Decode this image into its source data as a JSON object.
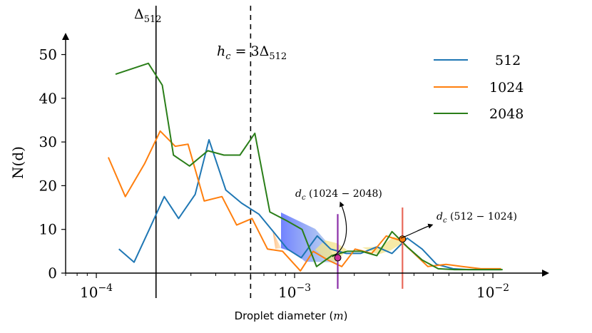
{
  "chart_data": {
    "type": "line",
    "xscale": "log",
    "xlim": [
      7e-05,
      0.018
    ],
    "ylim": [
      0,
      54
    ],
    "xlabel_prefix": "Droplet diameter (",
    "xlabel_var": "m",
    "xlabel_suffix": ")",
    "ylabel": "N(d)",
    "yticks": [
      0,
      10,
      20,
      30,
      40,
      50
    ],
    "ytick_labels": [
      "0",
      "10",
      "20",
      "30",
      "40",
      "50"
    ],
    "xticks": [
      0.0001,
      0.001,
      0.01
    ],
    "xtick_labels": [
      {
        "base": "10",
        "exp": "−4"
      },
      {
        "base": "10",
        "exp": "−3"
      },
      {
        "base": "10",
        "exp": "−2"
      }
    ],
    "legend_position": "top-right",
    "series": [
      {
        "name": "512",
        "color": "#1f77b4",
        "x": [
          0.00013,
          0.000155,
          0.000185,
          0.00022,
          0.00026,
          0.000315,
          0.00037,
          0.00045,
          0.00054,
          0.00066,
          0.00078,
          0.00092,
          0.00108,
          0.0013,
          0.00152,
          0.00182,
          0.00215,
          0.0026,
          0.0031,
          0.0037,
          0.0044,
          0.0052,
          0.0063,
          0.0075,
          0.0091,
          0.011
        ],
        "y": [
          5.5,
          2.5,
          10.0,
          17.5,
          12.5,
          18.0,
          30.5,
          19.0,
          16.0,
          13.5,
          9.5,
          5.5,
          3.5,
          8.5,
          5.5,
          4.5,
          4.5,
          6.0,
          4.5,
          8.0,
          5.5,
          2.0,
          1.0,
          0.8,
          0.8,
          0.8
        ]
      },
      {
        "name": "1024",
        "color": "#ff7f0e",
        "x": [
          0.000115,
          0.00014,
          0.000175,
          0.00021,
          0.00025,
          0.00029,
          0.00035,
          0.00043,
          0.00051,
          0.00061,
          0.00073,
          0.00087,
          0.00107,
          0.00124,
          0.00147,
          0.00173,
          0.00202,
          0.00245,
          0.0029,
          0.0034,
          0.0039,
          0.0047,
          0.0058,
          0.007,
          0.0087,
          0.011
        ],
        "y": [
          26.5,
          17.5,
          25.0,
          32.5,
          29.0,
          29.5,
          16.5,
          17.5,
          11.0,
          12.5,
          5.5,
          5.0,
          0.5,
          5.0,
          3.0,
          1.5,
          5.5,
          4.5,
          8.5,
          7.5,
          5.0,
          1.5,
          2.0,
          1.5,
          1.0,
          1.0
        ]
      },
      {
        "name": "2048",
        "color": "#2a7e19",
        "x": [
          0.000125,
          0.000183,
          0.000215,
          0.000245,
          0.000295,
          0.000365,
          0.00044,
          0.00053,
          0.00063,
          0.00075,
          0.00091,
          0.00109,
          0.00129,
          0.00154,
          0.00184,
          0.00218,
          0.0026,
          0.0031,
          0.0037,
          0.0044,
          0.0053,
          0.0064,
          0.0077,
          0.0093,
          0.0112
        ],
        "y": [
          45.5,
          48.0,
          43.0,
          27.0,
          24.5,
          28.0,
          27.0,
          27.0,
          32.0,
          14.0,
          12.0,
          10.0,
          1.5,
          4.0,
          5.0,
          5.0,
          4.0,
          9.5,
          6.0,
          3.0,
          1.0,
          0.8,
          0.8,
          0.8,
          0.8
        ]
      }
    ],
    "vlines": [
      {
        "x": 0.0002,
        "style": "solid",
        "color": "#000000",
        "label": "Δ",
        "label_sub": "512"
      },
      {
        "x": 0.0006,
        "style": "dashed",
        "color": "#000000",
        "label": "h",
        "label_sub": "c",
        "label_rest": " = 3Δ",
        "label_rest_sub": "512"
      }
    ],
    "markers": [
      {
        "x": 0.00165,
        "y": 3.5,
        "color": "#cc3399",
        "line_color": "#8b2fa8",
        "line_ymin": 0,
        "line_ymax": 13.5
      },
      {
        "x": 0.0035,
        "y": 7.8,
        "color": "#ff7f0e",
        "line_color": "#e9695a",
        "line_ymin": 0,
        "line_ymax": 15.0
      }
    ],
    "annotations": [
      {
        "var": "d",
        "sub": "c",
        "text": " (1024 − 2048)"
      },
      {
        "var": "d",
        "sub": "c",
        "text": " (512 − 1024)"
      }
    ]
  }
}
